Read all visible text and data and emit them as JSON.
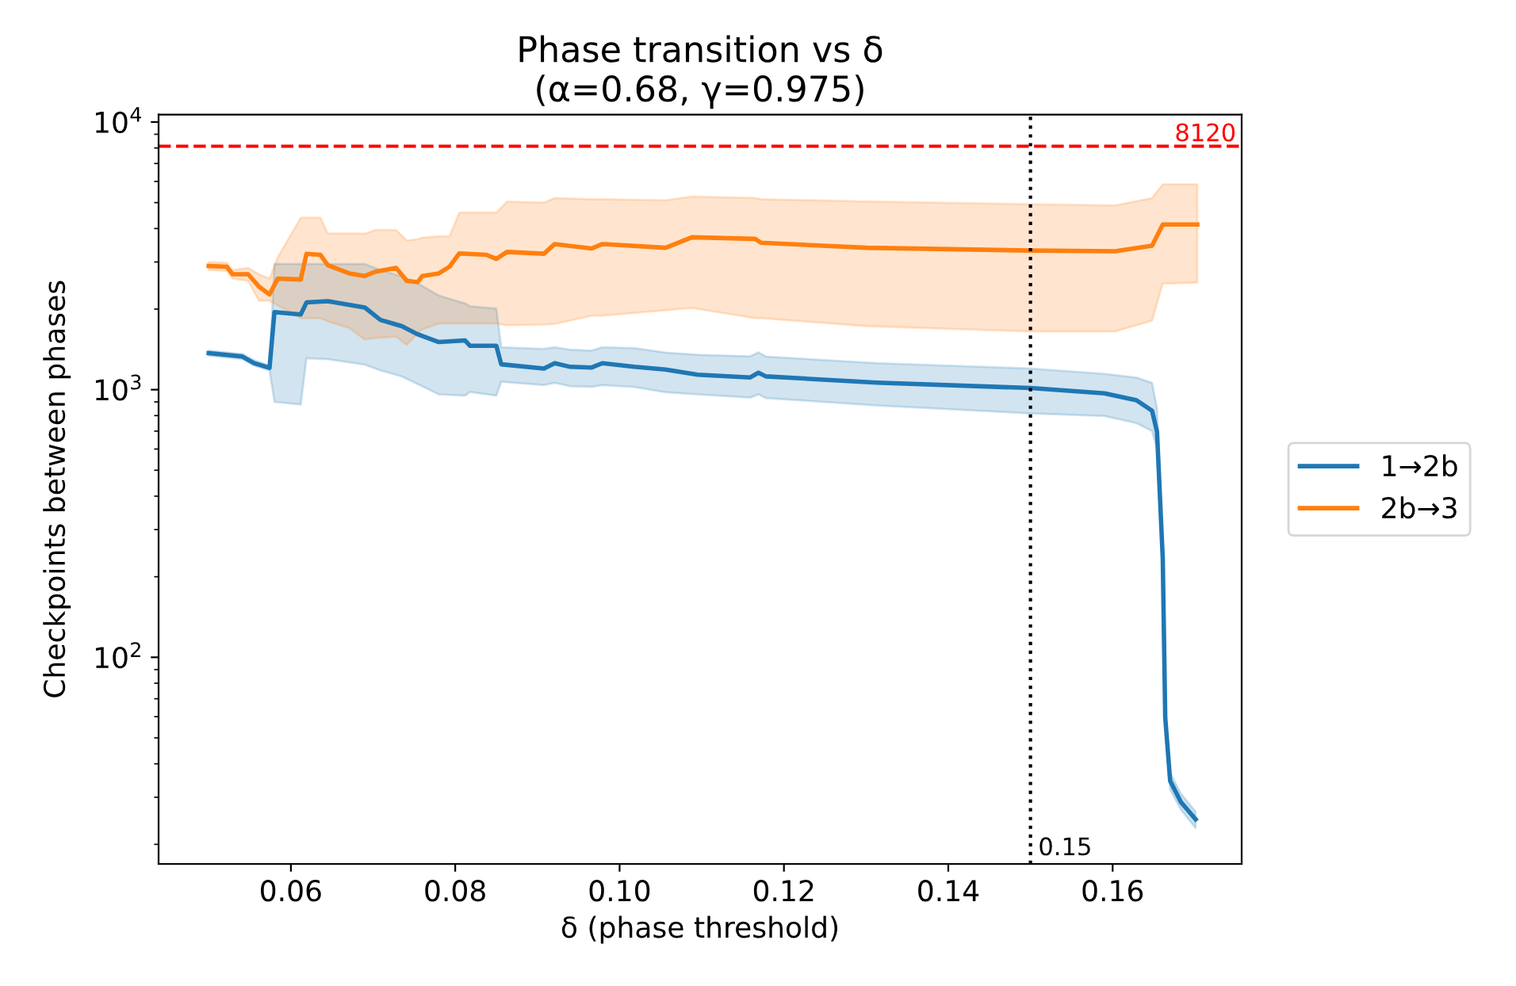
{
  "chart_data": {
    "type": "line",
    "title": "Phase transition vs δ\n(α=0.68, γ=0.975)",
    "xlabel": "δ (phase threshold)",
    "ylabel": "Checkpoints between phases",
    "log": "y",
    "grid": false,
    "legend": "right",
    "marker": "none",
    "line_style": "solid",
    "xlim": [
      0.0439,
      0.1757
    ],
    "ylim": [
      16.9,
      10660
    ],
    "xticks": [
      {
        "value": 0.06,
        "label": "0.06"
      },
      {
        "value": 0.08,
        "label": "0.08"
      },
      {
        "value": 0.1,
        "label": "0.10"
      },
      {
        "value": 0.12,
        "label": "0.12"
      },
      {
        "value": 0.14,
        "label": "0.14"
      },
      {
        "value": 0.16,
        "label": "0.16"
      }
    ],
    "yticks": [
      {
        "value": 100,
        "label": "10$^{2}$"
      },
      {
        "value": 1000,
        "label": "10$^{3}$"
      },
      {
        "value": 10000,
        "label": "10$^{4}$"
      }
    ],
    "ref_lines": [
      {
        "axis": "y",
        "value": 8120,
        "label": "8120",
        "color": "#ff0000",
        "line_style": "dashed"
      },
      {
        "axis": "x",
        "value": 0.15,
        "label": "0.15",
        "color": "#000000",
        "line_style": "dotted"
      }
    ],
    "series": [
      {
        "name": "1→2b",
        "color": "#1f77b4",
        "x": [
          0.05,
          0.0541,
          0.0555,
          0.0574,
          0.058,
          0.0612,
          0.0619,
          0.0645,
          0.069,
          0.0709,
          0.0735,
          0.0754,
          0.078,
          0.0812,
          0.0818,
          0.085,
          0.0856,
          0.0908,
          0.0921,
          0.094,
          0.0966,
          0.0979,
          0.1018,
          0.1056,
          0.1095,
          0.1159,
          0.1169,
          0.1178,
          0.1313,
          0.15,
          0.159,
          0.1629,
          0.1648,
          0.1654,
          0.1661,
          0.1664,
          0.167,
          0.1683,
          0.1701
        ],
        "values": [
          1370,
          1330,
          1256,
          1206,
          1950,
          1910,
          2118,
          2140,
          2027,
          1823,
          1727,
          1612,
          1506,
          1527,
          1459,
          1459,
          1244,
          1200,
          1256,
          1217,
          1210,
          1256,
          1217,
          1189,
          1137,
          1111,
          1157,
          1121,
          1062,
          1014,
          969,
          913,
          834,
          695,
          233,
          59.6,
          34.5,
          28.8,
          24.8
        ],
        "lower": [
          1340,
          1300,
          1230,
          1180,
          900,
          880,
          1310,
          1300,
          1240,
          1180,
          1120,
          1050,
          960,
          950,
          980,
          950,
          1070,
          1040,
          1060,
          1030,
          1025,
          1040,
          1023,
          978,
          960,
          934,
          960,
          930,
          873,
          815,
          797,
          750,
          700,
          600,
          215,
          55,
          32,
          27,
          23
        ],
        "upper": [
          1400,
          1360,
          1290,
          1230,
          2950,
          2950,
          2950,
          2950,
          2950,
          2800,
          2650,
          2500,
          2250,
          2100,
          2050,
          2010,
          1440,
          1420,
          1440,
          1410,
          1400,
          1440,
          1430,
          1376,
          1350,
          1332,
          1380,
          1330,
          1256,
          1200,
          1146,
          1110,
          1060,
          850,
          250,
          64,
          37,
          31,
          26.5
        ]
      },
      {
        "name": "2b→3",
        "color": "#ff7f0e",
        "x": [
          0.05,
          0.0522,
          0.0529,
          0.0548,
          0.0561,
          0.0574,
          0.0584,
          0.0612,
          0.0619,
          0.0636,
          0.0645,
          0.0671,
          0.069,
          0.0703,
          0.0728,
          0.0741,
          0.0754,
          0.076,
          0.078,
          0.0793,
          0.0805,
          0.0838,
          0.085,
          0.0863,
          0.0908,
          0.0921,
          0.0966,
          0.0979,
          0.1056,
          0.1088,
          0.1165,
          0.1172,
          0.1301,
          0.15,
          0.1603,
          0.1648,
          0.1661,
          0.1703
        ],
        "values": [
          2900,
          2880,
          2700,
          2700,
          2430,
          2270,
          2600,
          2580,
          3220,
          3190,
          2917,
          2720,
          2660,
          2760,
          2850,
          2550,
          2520,
          2660,
          2720,
          2880,
          3230,
          3190,
          3080,
          3270,
          3220,
          3500,
          3370,
          3500,
          3390,
          3710,
          3660,
          3540,
          3390,
          3310,
          3290,
          3450,
          4140,
          4140
        ],
        "lower": [
          2800,
          2780,
          2600,
          2550,
          2150,
          2150,
          2070,
          1850,
          1850,
          1850,
          1800,
          1700,
          1540,
          1560,
          1580,
          1470,
          1620,
          1680,
          1767,
          1767,
          1767,
          1767,
          1767,
          1740,
          1750,
          1760,
          1890,
          1890,
          1980,
          2020,
          1850,
          1850,
          1727,
          1650,
          1650,
          1810,
          2490,
          2510
        ],
        "upper": [
          3000,
          2980,
          2800,
          2850,
          2700,
          2600,
          3120,
          4390,
          4390,
          4390,
          3830,
          3830,
          3830,
          3950,
          3950,
          3610,
          3650,
          3700,
          3740,
          3740,
          4590,
          4590,
          4590,
          5040,
          5000,
          5200,
          5150,
          5150,
          5100,
          5270,
          5200,
          5150,
          5050,
          4930,
          4880,
          5200,
          5850,
          5850
        ]
      }
    ]
  }
}
